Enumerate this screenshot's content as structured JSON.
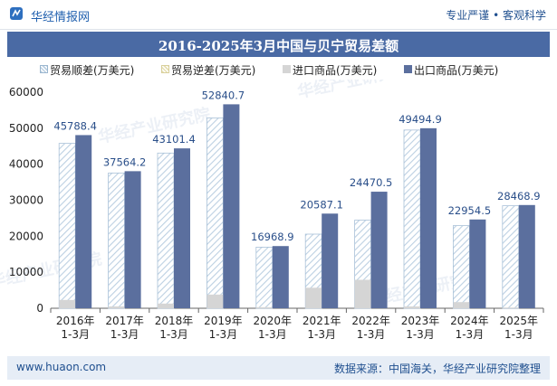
{
  "header": {
    "brand": "华经情报网",
    "tagline": "专业严谨 • 客观科学"
  },
  "chart_data": {
    "type": "bar",
    "title": "2016-2025年3月中国与贝宁贸易差额",
    "categories": [
      "2016年\n1-3月",
      "2017年\n1-3月",
      "2018年\n1-3月",
      "2019年\n1-3月",
      "2020年\n1-3月",
      "2021年\n1-3月",
      "2022年\n1-3月",
      "2023年\n1-3月",
      "2024年\n1-3月",
      "2025年\n1-3月"
    ],
    "series": [
      {
        "name": "贸易顺差(万美元)",
        "values": [
          45788.4,
          37564.2,
          43101.4,
          52840.7,
          16968.9,
          20587.1,
          24470.5,
          49494.9,
          22954.5,
          28468.9
        ],
        "color": "#bcd0e2"
      },
      {
        "name": "贸易逆差(万美元)",
        "values": [
          0,
          0,
          0,
          0,
          0,
          0,
          0,
          0,
          0,
          0
        ],
        "color": "#e6dfb3"
      },
      {
        "name": "进口商品(万美元)",
        "values": [
          2300,
          500,
          1300,
          3800,
          300,
          5700,
          7900,
          500,
          1700,
          200
        ],
        "color": "#d5d5d5"
      },
      {
        "name": "出口商品(万美元)",
        "values": [
          48088.4,
          38064.2,
          44401.4,
          56640.7,
          17268.9,
          26287.1,
          32370.5,
          49994.9,
          24654.5,
          28668.9
        ],
        "color": "#5b6f9e"
      }
    ],
    "data_labels": [
      "45788.4",
      "37564.2",
      "43101.4",
      "52840.7",
      "16968.9",
      "20587.1",
      "24470.5",
      "49494.9",
      "22954.5",
      "28468.9"
    ],
    "ylim": [
      0,
      60000
    ],
    "yticks": [
      0,
      10000,
      20000,
      30000,
      40000,
      50000,
      60000
    ],
    "legend_position": "top",
    "grid": false
  },
  "watermark": "华经产业研究院",
  "footer": {
    "website": "www.huaon.com",
    "source": "数据来源：中国海关，华经产业研究院整理"
  }
}
